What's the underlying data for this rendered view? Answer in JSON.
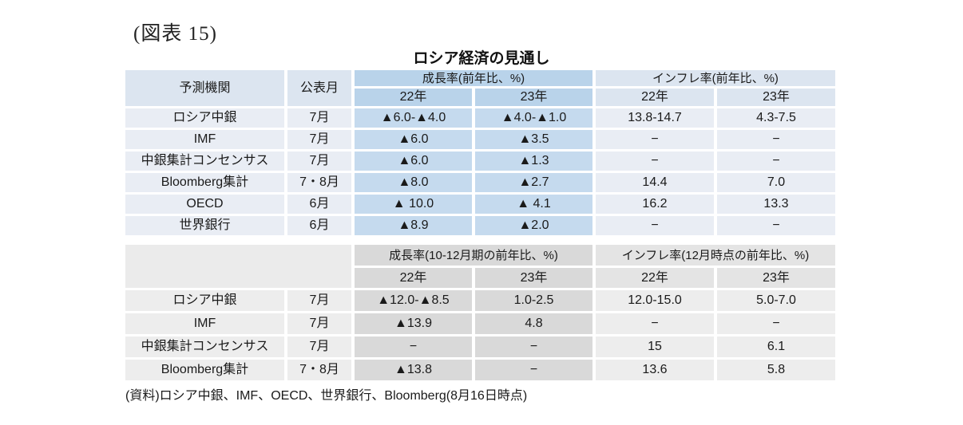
{
  "figure_label": "(図表 15)",
  "title": "ロシア経済の見通し",
  "source_note": "(資料)ロシア中銀、IMF、OECD、世界銀行、Bloomberg(8月16日時点)",
  "colors": {
    "table1_header_bg": "#dce5f0",
    "table1_row_bg": "#e9edf4",
    "table1_growth_header_bg": "#b9d3ea",
    "table1_growth_cell_bg": "#c5daee",
    "table2_header_bg": "#e4e4e4",
    "table2_row_bg": "#ededed",
    "table2_growth_bg": "#d9d9d9",
    "text": "#1a1a1a"
  },
  "table1": {
    "headers": {
      "institution": "予測機関",
      "month": "公表月",
      "growth_group": "成長率(前年比、%)",
      "inflation_group": "インフレ率(前年比、%)",
      "year22": "22年",
      "year23": "23年"
    },
    "rows": [
      {
        "institution": "ロシア中銀",
        "month": "7月",
        "growth22": "▲6.0-▲4.0",
        "growth23": "▲4.0-▲1.0",
        "inflation22": "13.8-14.7",
        "inflation23": "4.3-7.5"
      },
      {
        "institution": "IMF",
        "month": "7月",
        "growth22": "▲6.0",
        "growth23": "▲3.5",
        "inflation22": "−",
        "inflation23": "−"
      },
      {
        "institution": "中銀集計コンセンサス",
        "month": "7月",
        "growth22": "▲6.0",
        "growth23": "▲1.3",
        "inflation22": "−",
        "inflation23": "−"
      },
      {
        "institution": "Bloomberg集計",
        "month": "7・8月",
        "growth22": "▲8.0",
        "growth23": "▲2.7",
        "inflation22": "14.4",
        "inflation23": "7.0"
      },
      {
        "institution": "OECD",
        "month": "6月",
        "growth22": "▲ 10.0",
        "growth23": "▲ 4.1",
        "inflation22": "16.2",
        "inflation23": "13.3"
      },
      {
        "institution": "世界銀行",
        "month": "6月",
        "growth22": "▲8.9",
        "growth23": "▲2.0",
        "inflation22": "−",
        "inflation23": "−"
      }
    ]
  },
  "table2": {
    "headers": {
      "growth_group": "成長率(10-12月期の前年比、%)",
      "inflation_group": "インフレ率(12月時点の前年比、%)",
      "year22": "22年",
      "year23": "23年"
    },
    "rows": [
      {
        "institution": "ロシア中銀",
        "month": "7月",
        "growth22": "▲12.0-▲8.5",
        "growth23": "1.0-2.5",
        "inflation22": "12.0-15.0",
        "inflation23": "5.0-7.0"
      },
      {
        "institution": "IMF",
        "month": "7月",
        "growth22": "▲13.9",
        "growth23": "4.8",
        "inflation22": "−",
        "inflation23": "−"
      },
      {
        "institution": "中銀集計コンセンサス",
        "month": "7月",
        "growth22": "−",
        "growth23": "−",
        "inflation22": "15",
        "inflation23": "6.1"
      },
      {
        "institution": "Bloomberg集計",
        "month": "7・8月",
        "growth22": "▲13.8",
        "growth23": "−",
        "inflation22": "13.6",
        "inflation23": "5.8"
      }
    ]
  }
}
